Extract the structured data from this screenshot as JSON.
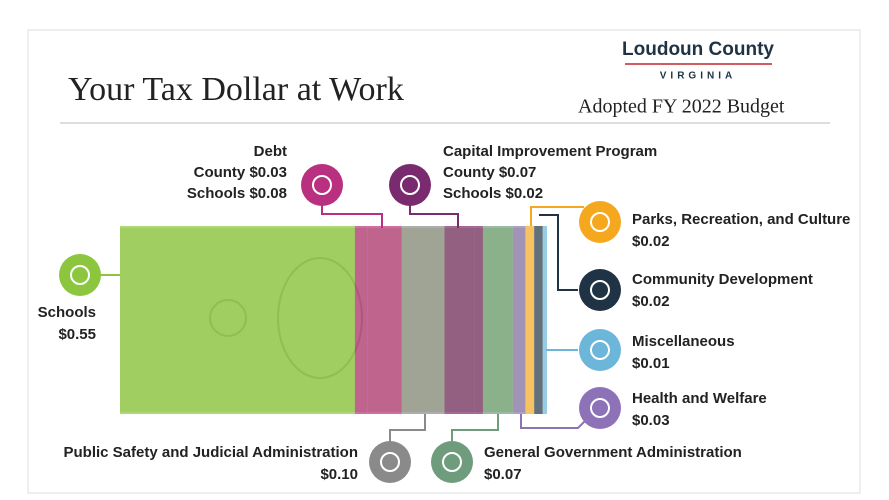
{
  "header": {
    "title": "Your Tax Dollar at Work",
    "subtitle": "Adopted FY 2022 Budget",
    "logo": "Loudoun County",
    "logo_state": "VIRGINIA"
  },
  "segments": [
    {
      "name": "Schools",
      "value": 0.55,
      "value_label": "$0.55",
      "color": "#8cc63f"
    },
    {
      "name": "Debt",
      "color": "#b8307f",
      "items": [
        {
          "label": "County",
          "value": 0.03,
          "value_label": "$0.03"
        },
        {
          "label": "Schools",
          "value": 0.08,
          "value_label": "$0.08"
        }
      ]
    },
    {
      "name": "Public Safety and Judicial Administration",
      "value": 0.1,
      "value_label": "$0.10",
      "color": "#8a8a8a"
    },
    {
      "name": "Capital Improvement Program",
      "color": "#7a2a6e",
      "items": [
        {
          "label": "County",
          "value": 0.07,
          "value_label": "$0.07"
        },
        {
          "label": "Schools",
          "value": 0.02,
          "value_label": "$0.02"
        }
      ]
    },
    {
      "name": "General Government Administration",
      "value": 0.07,
      "value_label": "$0.07",
      "color": "#6e9c7c"
    },
    {
      "name": "Health and Welfare",
      "value": 0.03,
      "value_label": "$0.03",
      "color": "#8d72b8"
    },
    {
      "name": "Parks, Recreation, and Culture",
      "value": 0.02,
      "value_label": "$0.02",
      "color": "#f5a81e"
    },
    {
      "name": "Community Development",
      "value": 0.02,
      "value_label": "$0.02",
      "color": "#1f3344"
    },
    {
      "name": "Miscellaneous",
      "value": 0.01,
      "value_label": "$0.01",
      "color": "#6bb6d9"
    }
  ]
}
